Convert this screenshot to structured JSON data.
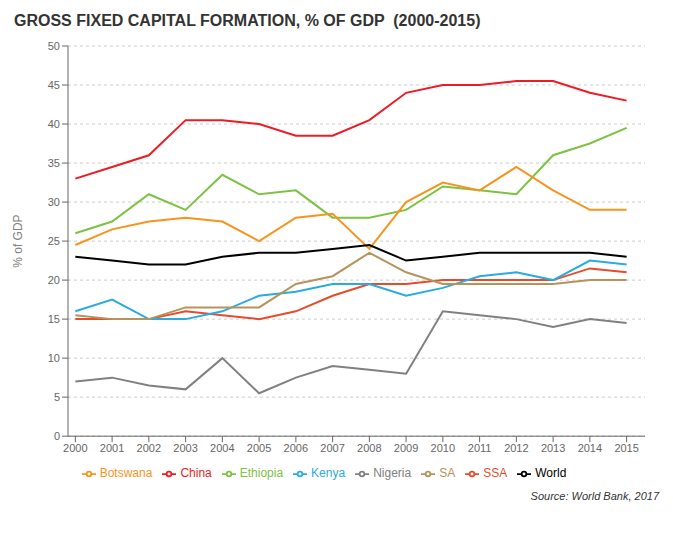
{
  "chart_data": {
    "type": "line",
    "title": "GROSS FIXED CAPITAL FORMATION, % OF GDP  (2000-2015)",
    "y_label": "% of GDP",
    "annotations": [
      "Source: World Bank, 2017"
    ],
    "x": [
      2000,
      2001,
      2002,
      2003,
      2004,
      2005,
      2006,
      2007,
      2008,
      2009,
      2010,
      2011,
      2012,
      2013,
      2014,
      2015
    ],
    "xlim": [
      1999.8,
      2015.5
    ],
    "xticks": [
      2000,
      2001,
      2002,
      2003,
      2004,
      2005,
      2006,
      2007,
      2008,
      2009,
      2010,
      2011,
      2012,
      2013,
      2014,
      2015
    ],
    "ylim": [
      0,
      50
    ],
    "yticks": [
      0,
      5,
      10,
      15,
      20,
      25,
      30,
      35,
      40,
      45,
      50
    ],
    "grid": true,
    "legend": "bottom",
    "series": [
      {
        "name": "SSA",
        "color": "#E84B2A",
        "values": [
          15.0,
          15.0,
          15.0,
          16.0,
          15.5,
          15.0,
          16.0,
          18.0,
          19.5,
          19.5,
          20.0,
          20.0,
          20.0,
          20.0,
          21.5,
          21.0
        ]
      },
      {
        "name": "Ethiopia",
        "color": "#7DC242",
        "values": [
          26.0,
          27.5,
          31.0,
          29.0,
          33.5,
          31.0,
          31.5,
          28.0,
          28.0,
          29.0,
          32.0,
          31.5,
          31.0,
          36.0,
          37.5,
          39.5
        ]
      },
      {
        "name": "Kenya",
        "color": "#29ABE2",
        "values": [
          16.0,
          17.5,
          15.0,
          15.0,
          16.0,
          18.0,
          18.5,
          19.5,
          19.5,
          18.0,
          19.0,
          20.5,
          21.0,
          20.0,
          22.5,
          22.0
        ]
      },
      {
        "name": "Nigeria",
        "color": "#808080",
        "values": [
          7.0,
          7.5,
          6.5,
          6.0,
          10.0,
          5.5,
          7.5,
          9.0,
          8.5,
          8.0,
          16.0,
          15.5,
          15.0,
          14.0,
          15.0,
          14.5
        ]
      },
      {
        "name": "Botswana",
        "color": "#F7941D",
        "values": [
          24.5,
          26.5,
          27.5,
          28.0,
          27.5,
          25.0,
          28.0,
          28.5,
          24.0,
          30.0,
          32.5,
          31.5,
          34.5,
          31.5,
          29.0,
          29.0
        ]
      },
      {
        "name": "SA",
        "color": "#B5935A",
        "values": [
          15.5,
          15.0,
          15.0,
          16.5,
          16.5,
          16.5,
          19.5,
          20.5,
          23.5,
          21.0,
          19.5,
          19.5,
          19.5,
          19.5,
          20.0,
          20.0
        ]
      },
      {
        "name": "China",
        "color": "#ED1C24",
        "values": [
          33.0,
          34.5,
          36.0,
          40.5,
          40.5,
          40.0,
          38.5,
          38.5,
          40.5,
          44.0,
          45.0,
          45.0,
          45.5,
          45.5,
          44.0,
          43.0
        ]
      },
      {
        "name": "World",
        "color": "#000000",
        "values": [
          23.0,
          22.5,
          22.0,
          22.0,
          23.0,
          23.5,
          23.5,
          24.0,
          24.5,
          22.5,
          23.0,
          23.5,
          23.5,
          23.5,
          23.5,
          23.0
        ]
      }
    ]
  }
}
